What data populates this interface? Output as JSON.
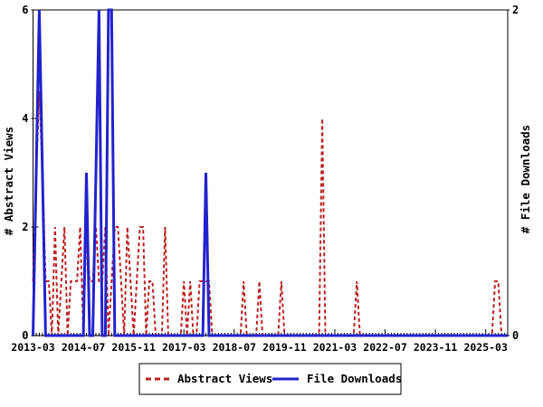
{
  "page": {
    "background": "#ffffff"
  },
  "chart": {
    "left_axis_label": "# Abstract Views",
    "right_axis_label": "# File Downloads",
    "legend": {
      "abstract_views_label": "Abstract Views",
      "file_downloads_label": "File Downloads"
    }
  },
  "chart_data": {
    "type": "line",
    "title": "",
    "x_start": "2013-03",
    "x_step_months": 1,
    "n_points": 152,
    "x_major_tick_interval_months": 16,
    "x_tick_labels": [
      "2013-03",
      "2014-07",
      "2015-11",
      "2017-03",
      "2018-07",
      "2019-11",
      "2021-03",
      "2022-07",
      "2023-11",
      "2025-03"
    ],
    "left_axis": {
      "label": "# Abstract Views",
      "range": [
        0,
        6
      ],
      "ticks": [
        0,
        2,
        4,
        6
      ]
    },
    "right_axis": {
      "label": "# File Downloads",
      "range": [
        0,
        2
      ],
      "ticks": [
        0,
        2
      ]
    },
    "grid": false,
    "legend_position": "bottom-center",
    "series": [
      {
        "name": "Abstract Views",
        "axis": "left",
        "color": "#bb2222",
        "line_style": "dashed",
        "values": [
          1,
          3,
          4.5,
          3,
          1,
          1,
          0,
          2,
          0,
          1,
          2,
          0,
          1,
          1,
          1,
          2,
          0,
          2,
          1,
          1,
          2,
          1,
          1,
          2,
          0,
          1,
          2,
          2,
          1,
          0,
          2,
          1,
          0,
          1,
          2,
          2,
          0,
          1,
          1,
          0,
          0,
          0,
          2,
          0,
          0,
          0,
          0,
          0,
          1,
          0,
          1,
          0,
          0,
          1,
          1,
          1,
          1,
          0,
          0,
          0,
          0,
          0,
          0,
          0,
          0,
          0,
          0,
          1,
          0,
          0,
          0,
          0,
          1,
          0,
          0,
          0,
          0,
          0,
          0,
          1,
          0,
          0,
          0,
          0,
          0,
          0,
          0,
          0,
          0,
          0,
          0,
          0,
          4,
          0,
          0,
          0,
          0,
          0,
          0,
          0,
          0,
          0,
          0,
          1,
          0,
          0,
          0,
          0,
          0,
          0,
          0,
          0,
          0,
          0,
          0,
          0,
          0,
          0,
          0,
          0,
          0,
          0,
          0,
          0,
          0,
          0,
          0,
          0,
          0,
          0,
          0,
          0,
          0,
          0,
          0,
          0,
          0,
          0,
          0,
          0,
          0,
          0,
          0,
          0,
          0,
          0,
          0,
          1,
          1,
          0,
          0,
          0
        ]
      },
      {
        "name": "File Downloads",
        "axis": "right",
        "color": "#2222cc",
        "line_style": "solid",
        "values": [
          0,
          1,
          2,
          1,
          0,
          0,
          0,
          0,
          0,
          0,
          0,
          0,
          0,
          0,
          0,
          0,
          0,
          1,
          0,
          0,
          1,
          2,
          0,
          0,
          2,
          2,
          0,
          0,
          0,
          0,
          0,
          0,
          0,
          0,
          0,
          0,
          0,
          0,
          0,
          0,
          0,
          0,
          0,
          0,
          0,
          0,
          0,
          0,
          0,
          0,
          0,
          0,
          0,
          0,
          0,
          1,
          0,
          0,
          0,
          0,
          0,
          0,
          0,
          0,
          0,
          0,
          0,
          0,
          0,
          0,
          0,
          0,
          0,
          0,
          0,
          0,
          0,
          0,
          0,
          0,
          0,
          0,
          0,
          0,
          0,
          0,
          0,
          0,
          0,
          0,
          0,
          0,
          0,
          0,
          0,
          0,
          0,
          0,
          0,
          0,
          0,
          0,
          0,
          0,
          0,
          0,
          0,
          0,
          0,
          0,
          0,
          0,
          0,
          0,
          0,
          0,
          0,
          0,
          0,
          0,
          0,
          0,
          0,
          0,
          0,
          0,
          0,
          0,
          0,
          0,
          0,
          0,
          0,
          0,
          0,
          0,
          0,
          0,
          0,
          0,
          0,
          0,
          0,
          0,
          0,
          0,
          0,
          0,
          0,
          0,
          0,
          0
        ]
      }
    ]
  }
}
